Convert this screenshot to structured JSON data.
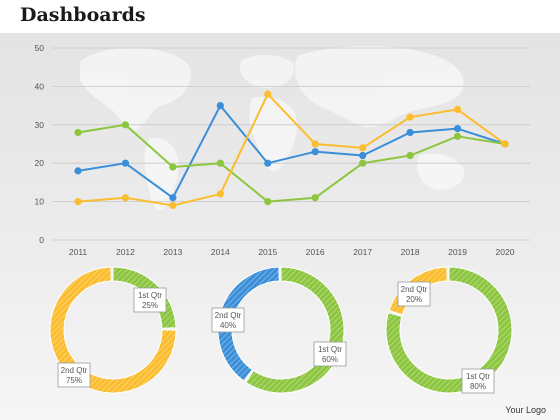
{
  "title": "Dashboards",
  "logo_text": "Your Logo",
  "colors": {
    "blue": "#3a8fd8",
    "green": "#8cc63f",
    "yellow": "#fbbd2e",
    "grid": "#c8c8c8"
  },
  "chart_data": [
    {
      "type": "line",
      "x": [
        "2011",
        "2012",
        "2013",
        "2014",
        "2015",
        "2016",
        "2017",
        "2018",
        "2019",
        "2020"
      ],
      "ylim": [
        0,
        50
      ],
      "yticks": [
        0,
        10,
        20,
        30,
        40,
        50
      ],
      "grid": true,
      "series": [
        {
          "color": "#3a8fd8",
          "values": [
            18,
            20,
            11,
            35,
            20,
            23,
            22,
            28,
            29,
            25
          ]
        },
        {
          "color": "#8cc63f",
          "values": [
            28,
            30,
            19,
            20,
            10,
            11,
            20,
            22,
            27,
            25
          ]
        },
        {
          "color": "#fbbd2e",
          "values": [
            10,
            11,
            9,
            12,
            38,
            25,
            24,
            32,
            34,
            25
          ]
        }
      ]
    },
    {
      "type": "pie",
      "slices": [
        {
          "label": "1st Qtr",
          "value": 25,
          "text": "25%",
          "color": "#8cc63f"
        },
        {
          "label": "2nd Qtr",
          "value": 75,
          "text": "75%",
          "color": "#fbbd2e"
        }
      ]
    },
    {
      "type": "pie",
      "slices": [
        {
          "label": "1st Qtr",
          "value": 60,
          "text": "60%",
          "color": "#8cc63f"
        },
        {
          "label": "2nd Qtr",
          "value": 40,
          "text": "40%",
          "color": "#3a8fd8"
        }
      ]
    },
    {
      "type": "pie",
      "slices": [
        {
          "label": "1st Qtr",
          "value": 80,
          "text": "80%",
          "color": "#8cc63f"
        },
        {
          "label": "2nd Qtr",
          "value": 20,
          "text": "20%",
          "color": "#fbbd2e"
        }
      ]
    }
  ]
}
